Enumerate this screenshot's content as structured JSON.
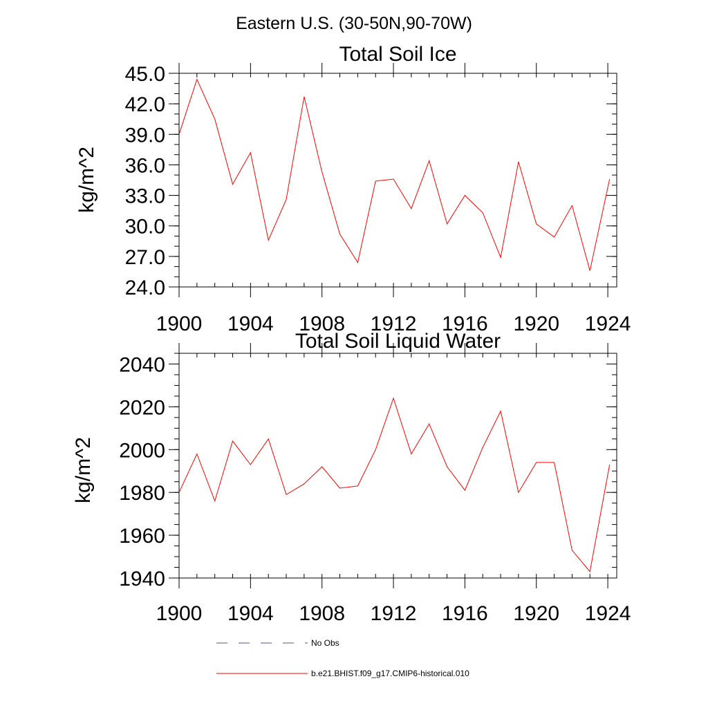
{
  "figure": {
    "suptitle": "Eastern U.S. (30-50N,90-70W)"
  },
  "chart_data": [
    {
      "type": "line",
      "title": "Total Soil Ice",
      "ylabel": "kg/m^2",
      "xlabel": "",
      "xlim": [
        1900,
        1924.5
      ],
      "ylim": [
        24.0,
        45.0
      ],
      "xticks": [
        1900,
        1904,
        1908,
        1912,
        1916,
        1920,
        1924
      ],
      "xtick_labels": [
        "1900",
        "1904",
        "1908",
        "1912",
        "1916",
        "1920",
        "1924"
      ],
      "yticks": [
        24.0,
        27.0,
        30.0,
        33.0,
        36.0,
        39.0,
        42.0,
        45.0
      ],
      "ytick_labels": [
        "24.0",
        "27.0",
        "30.0",
        "33.0",
        "36.0",
        "39.0",
        "42.0",
        "45.0"
      ],
      "y_minor_step": 1.0,
      "x_minor_step": 1,
      "grid": false,
      "x": [
        1900,
        1901,
        1902,
        1903,
        1904,
        1905,
        1906,
        1907,
        1908,
        1909,
        1910,
        1911,
        1912,
        1913,
        1914,
        1915,
        1916,
        1917,
        1918,
        1919,
        1920,
        1921,
        1922,
        1923,
        1924.1
      ],
      "series": [
        {
          "name": "b.e21.BHIST.f09_g17.CMIP6-historical.010",
          "color": "#ff0000",
          "values": [
            39.0,
            44.4,
            40.5,
            34.1,
            37.2,
            28.6,
            32.6,
            42.7,
            35.3,
            29.2,
            26.4,
            34.4,
            34.6,
            31.7,
            36.4,
            30.2,
            33.0,
            31.3,
            26.9,
            36.3,
            30.2,
            28.9,
            32.0,
            25.6,
            34.6
          ]
        }
      ]
    },
    {
      "type": "line",
      "title": "Total Soil Liquid Water",
      "ylabel": "kg/m^2",
      "xlabel": "",
      "xlim": [
        1900,
        1924.5
      ],
      "ylim": [
        1940,
        2045
      ],
      "xticks": [
        1900,
        1904,
        1908,
        1912,
        1916,
        1920,
        1924
      ],
      "xtick_labels": [
        "1900",
        "1904",
        "1908",
        "1912",
        "1916",
        "1920",
        "1924"
      ],
      "yticks": [
        1940,
        1960,
        1980,
        2000,
        2020,
        2040
      ],
      "ytick_labels": [
        "1940",
        "1960",
        "1980",
        "2000",
        "2020",
        "2040"
      ],
      "y_minor_step": 5,
      "x_minor_step": 1,
      "grid": false,
      "x": [
        1900,
        1901,
        1902,
        1903,
        1904,
        1905,
        1906,
        1907,
        1908,
        1909,
        1910,
        1911,
        1912,
        1913,
        1914,
        1915,
        1916,
        1917,
        1918,
        1919,
        1920,
        1921,
        1922,
        1923,
        1924.1
      ],
      "series": [
        {
          "name": "b.e21.BHIST.f09_g17.CMIP6-historical.010",
          "color": "#ff0000",
          "values": [
            1980,
            1998,
            1976,
            2004,
            1993,
            2005,
            1979,
            1984,
            1992,
            1982,
            1983,
            2000,
            2024,
            1998,
            2012,
            1992,
            1981,
            2001,
            2018,
            1980,
            1994,
            1994,
            1953,
            1943,
            1993
          ]
        }
      ]
    }
  ],
  "legend": {
    "placement": "bottom",
    "items": [
      {
        "label": "No Obs",
        "color": "#4a5a8a",
        "dash": "dashed"
      },
      {
        "label": "b.e21.BHIST.f09_g17.CMIP6-historical.010",
        "color": "#ff0000",
        "dash": "solid"
      }
    ]
  }
}
